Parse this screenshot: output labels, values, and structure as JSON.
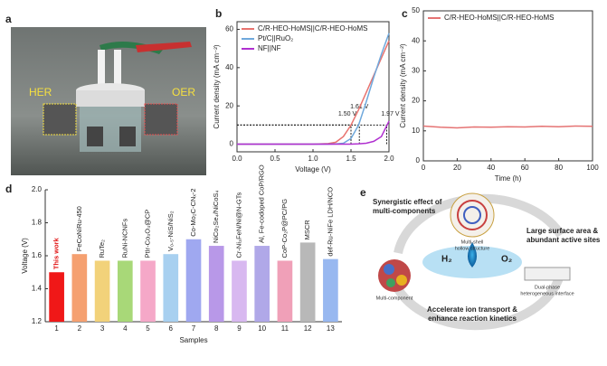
{
  "photo": {
    "panel": "a",
    "left_label": "HER",
    "right_label": "OER"
  },
  "chart_data": [
    {
      "panel": "b",
      "type": "line",
      "x_label": "Voltage (V)",
      "y_label": "Current density (mA cm⁻²)",
      "x": [
        0,
        0.2,
        0.4,
        0.6,
        0.8,
        1.0,
        1.2,
        1.3,
        1.4,
        1.5,
        1.6,
        1.7,
        1.8,
        1.9,
        2.0
      ],
      "series": [
        {
          "name": "C/R-HEO-HoMS||C/R-HEO-HoMS",
          "color": "#e8736f",
          "values": [
            0,
            0,
            0,
            0,
            0,
            0,
            0.3,
            1,
            4,
            10,
            18,
            27,
            36,
            45,
            54
          ]
        },
        {
          "name": "Pt/C||RuO₂",
          "color": "#6fa8dc",
          "values": [
            0,
            0,
            0,
            0,
            0,
            0,
            0,
            0.1,
            0.5,
            3,
            10,
            22,
            35,
            47,
            58
          ]
        },
        {
          "name": "NF||NF",
          "color": "#b030d0",
          "values": [
            0,
            0,
            0,
            0,
            0,
            0,
            0,
            0,
            0,
            0,
            0.2,
            0.5,
            1.5,
            4,
            12
          ]
        }
      ],
      "annotations": [
        {
          "text": "1.50 V",
          "x": 1.5,
          "y": 10
        },
        {
          "text": "1.61 V",
          "x": 1.61,
          "y": 10
        },
        {
          "text": "1.97 V",
          "x": 1.97,
          "y": 10
        }
      ],
      "xlim": [
        0,
        2.0
      ],
      "xticks": [
        {
          "value": 0,
          "label": "0.0"
        },
        0.5,
        {
          "value": 1,
          "label": "1.0"
        },
        1.5,
        {
          "value": 2,
          "label": "2.0"
        }
      ],
      "ylim": [
        -4,
        64
      ],
      "yticks": [
        0,
        20,
        40,
        60
      ],
      "legend": "upper-left"
    },
    {
      "panel": "c",
      "type": "line",
      "x_label": "Time (h)",
      "y_label": "Current density (mA cm⁻²)",
      "x": [
        0,
        10,
        20,
        30,
        40,
        50,
        60,
        70,
        80,
        90,
        100
      ],
      "series": [
        {
          "name": "C/R-HEO-HoMS||C/R-HEO-HoMS",
          "color": "#e57373",
          "values": [
            11.6,
            11.2,
            11.0,
            11.3,
            11.2,
            11.4,
            11.3,
            11.5,
            11.4,
            11.6,
            11.5
          ]
        }
      ],
      "xlim": [
        0,
        100
      ],
      "xticks": [
        0,
        20,
        40,
        60,
        80,
        100
      ],
      "ylim": [
        0,
        50
      ],
      "yticks": [
        0,
        10,
        20,
        30,
        40,
        50
      ],
      "legend": "upper-left"
    },
    {
      "panel": "d",
      "type": "bar",
      "x_label": "Samples",
      "y_label": "Voltage (V)",
      "categories": [
        "1",
        "2",
        "3",
        "4",
        "5",
        "6",
        "7",
        "8",
        "9",
        "10",
        "11",
        "12",
        "13"
      ],
      "sample_names": [
        "This work",
        "FeCoNiRu-450",
        "RuTe₂",
        "RuNi-NCNFs",
        "PtIr-Co₃O₄@CP",
        "V₀.₅-NiS/NiS₂",
        "Co-Mo₂C-CNₓ-2",
        "NiCo₂Se₄/NiCoS₄",
        "Cr-Ni₃FeN/Ni@N-GTs",
        "Al, Fe-codoped CoP/RGO",
        "CoP-Co₂P@PC/PG",
        "MSCR",
        "def-Ru-NiFe LDH/NCO"
      ],
      "values": [
        1.5,
        1.61,
        1.57,
        1.57,
        1.57,
        1.61,
        1.7,
        1.66,
        1.57,
        1.66,
        1.57,
        1.68,
        1.58
      ],
      "colors": [
        "#f01818",
        "#f5a070",
        "#f2d27a",
        "#a8d878",
        "#f5a8c8",
        "#a8d0f0",
        "#9fa8f0",
        "#b898e8",
        "#d8b8f0",
        "#b0a8e8",
        "#f0a0b8",
        "#b8b8b8",
        "#98b8f0"
      ],
      "ylim": [
        1.2,
        2.0
      ],
      "yticks": [
        1.2,
        1.4,
        1.6,
        1.8,
        {
          "value": 2,
          "label": "2.0"
        }
      ]
    }
  ],
  "diagram": {
    "panel": "e",
    "synergy": [
      "Synergistic effect of",
      "multi-components"
    ],
    "shell": [
      "Multi-shell",
      "hollow structure"
    ],
    "surface": [
      "Large surface area &",
      "abundant active sites"
    ],
    "h2": "H₂",
    "o2": "O₂",
    "multi": "Multi-component",
    "interface": [
      "Dual-phase",
      "heterogeneous interface"
    ],
    "transport": [
      "Accelerate ion transport &",
      "enhance reaction kinetics"
    ]
  }
}
